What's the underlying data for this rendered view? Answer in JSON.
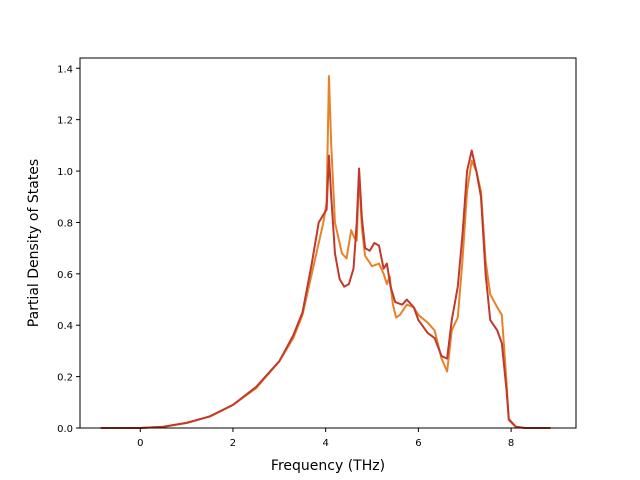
{
  "chart_data": {
    "type": "line",
    "title": "",
    "xlabel": "Frequency (THz)",
    "ylabel": "Partial Density of States",
    "xlim": [
      -1.3,
      9.4
    ],
    "ylim": [
      0.0,
      1.44
    ],
    "xticks": [
      0,
      2,
      4,
      6,
      8
    ],
    "yticks": [
      0.0,
      0.2,
      0.4,
      0.6,
      0.8,
      1.0,
      1.2,
      1.4
    ],
    "xtick_labels": [
      "0",
      "2",
      "4",
      "6",
      "8"
    ],
    "ytick_labels": [
      "0.0",
      "0.2",
      "0.4",
      "0.6",
      "0.8",
      "1.0",
      "1.2",
      "1.4"
    ],
    "grid": false,
    "legend": "none",
    "series": [
      {
        "color": "#e8822a",
        "points": [
          [
            -0.85,
            0.0
          ],
          [
            0.0,
            0.0
          ],
          [
            0.5,
            0.005
          ],
          [
            1.0,
            0.02
          ],
          [
            1.5,
            0.045
          ],
          [
            2.0,
            0.09
          ],
          [
            2.5,
            0.155
          ],
          [
            3.0,
            0.26
          ],
          [
            3.3,
            0.35
          ],
          [
            3.5,
            0.44
          ],
          [
            3.7,
            0.6
          ],
          [
            3.85,
            0.72
          ],
          [
            3.95,
            0.8
          ],
          [
            4.02,
            0.88
          ],
          [
            4.07,
            1.37
          ],
          [
            4.12,
            1.1
          ],
          [
            4.2,
            0.8
          ],
          [
            4.35,
            0.68
          ],
          [
            4.45,
            0.66
          ],
          [
            4.55,
            0.77
          ],
          [
            4.62,
            0.74
          ],
          [
            4.67,
            0.73
          ],
          [
            4.72,
            0.99
          ],
          [
            4.78,
            0.78
          ],
          [
            4.85,
            0.67
          ],
          [
            5.0,
            0.63
          ],
          [
            5.15,
            0.64
          ],
          [
            5.25,
            0.6
          ],
          [
            5.32,
            0.56
          ],
          [
            5.38,
            0.59
          ],
          [
            5.45,
            0.48
          ],
          [
            5.52,
            0.43
          ],
          [
            5.6,
            0.44
          ],
          [
            5.75,
            0.48
          ],
          [
            5.9,
            0.47
          ],
          [
            6.0,
            0.44
          ],
          [
            6.2,
            0.41
          ],
          [
            6.35,
            0.38
          ],
          [
            6.5,
            0.27
          ],
          [
            6.62,
            0.22
          ],
          [
            6.72,
            0.38
          ],
          [
            6.85,
            0.43
          ],
          [
            6.95,
            0.65
          ],
          [
            7.05,
            0.92
          ],
          [
            7.15,
            1.04
          ],
          [
            7.25,
            1.0
          ],
          [
            7.35,
            0.92
          ],
          [
            7.45,
            0.65
          ],
          [
            7.55,
            0.52
          ],
          [
            7.7,
            0.47
          ],
          [
            7.8,
            0.44
          ],
          [
            7.9,
            0.18
          ],
          [
            7.95,
            0.03
          ],
          [
            8.1,
            0.005
          ],
          [
            8.3,
            0.0
          ],
          [
            8.85,
            0.0
          ]
        ]
      },
      {
        "color": "#c0392b",
        "points": [
          [
            -0.85,
            0.0
          ],
          [
            0.0,
            0.0
          ],
          [
            0.5,
            0.005
          ],
          [
            1.0,
            0.02
          ],
          [
            1.5,
            0.045
          ],
          [
            2.0,
            0.09
          ],
          [
            2.5,
            0.16
          ],
          [
            3.0,
            0.26
          ],
          [
            3.3,
            0.36
          ],
          [
            3.5,
            0.45
          ],
          [
            3.7,
            0.64
          ],
          [
            3.85,
            0.8
          ],
          [
            3.95,
            0.83
          ],
          [
            4.02,
            0.85
          ],
          [
            4.07,
            1.06
          ],
          [
            4.12,
            0.9
          ],
          [
            4.2,
            0.68
          ],
          [
            4.3,
            0.58
          ],
          [
            4.4,
            0.55
          ],
          [
            4.5,
            0.56
          ],
          [
            4.6,
            0.62
          ],
          [
            4.67,
            0.8
          ],
          [
            4.72,
            1.01
          ],
          [
            4.78,
            0.82
          ],
          [
            4.85,
            0.7
          ],
          [
            4.95,
            0.69
          ],
          [
            5.05,
            0.72
          ],
          [
            5.15,
            0.71
          ],
          [
            5.25,
            0.62
          ],
          [
            5.32,
            0.64
          ],
          [
            5.4,
            0.55
          ],
          [
            5.5,
            0.49
          ],
          [
            5.65,
            0.48
          ],
          [
            5.75,
            0.5
          ],
          [
            5.9,
            0.47
          ],
          [
            6.0,
            0.42
          ],
          [
            6.2,
            0.37
          ],
          [
            6.35,
            0.35
          ],
          [
            6.5,
            0.28
          ],
          [
            6.62,
            0.27
          ],
          [
            6.72,
            0.42
          ],
          [
            6.85,
            0.55
          ],
          [
            6.95,
            0.75
          ],
          [
            7.05,
            1.0
          ],
          [
            7.15,
            1.08
          ],
          [
            7.25,
            1.0
          ],
          [
            7.35,
            0.9
          ],
          [
            7.45,
            0.6
          ],
          [
            7.55,
            0.42
          ],
          [
            7.7,
            0.38
          ],
          [
            7.8,
            0.33
          ],
          [
            7.9,
            0.15
          ],
          [
            7.95,
            0.035
          ],
          [
            8.1,
            0.005
          ],
          [
            8.3,
            0.0
          ],
          [
            8.85,
            0.0
          ]
        ]
      }
    ]
  }
}
